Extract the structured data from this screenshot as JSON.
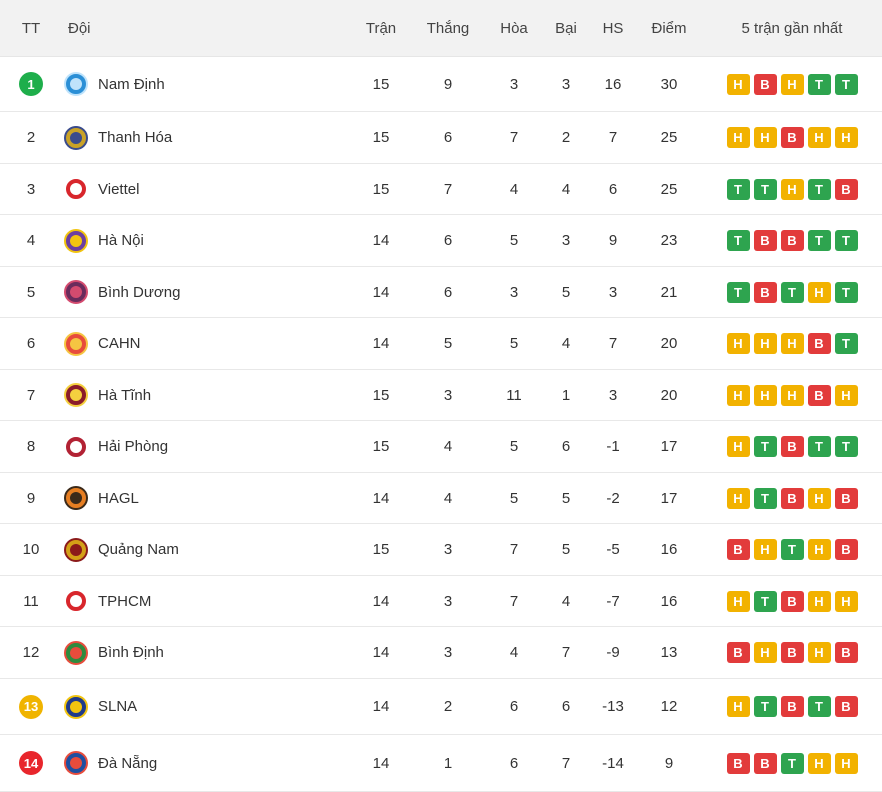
{
  "header": {
    "tt": "TT",
    "team": "Đội",
    "played": "Trận",
    "won": "Thắng",
    "drawn": "Hòa",
    "lost": "Bại",
    "gd": "HS",
    "points": "Điểm",
    "form": "5 trận gần nhất"
  },
  "colors": {
    "win": "#2ea44f",
    "draw": "#f2b200",
    "loss": "#e23b3b",
    "top_badge": "#1eae4b",
    "warn_badge": "#f0b400",
    "danger_badge": "#e8262c"
  },
  "rows": [
    {
      "pos": "1",
      "team": "Nam Định",
      "played": "15",
      "won": "9",
      "drawn": "3",
      "lost": "3",
      "gd": "16",
      "points": "30",
      "form": [
        "H",
        "B",
        "H",
        "T",
        "T"
      ],
      "badge": "#1eae4b",
      "logo": "#2b8fd6",
      "logo2": "#bfe3fb"
    },
    {
      "pos": "2",
      "team": "Thanh Hóa",
      "played": "15",
      "won": "6",
      "drawn": "7",
      "lost": "2",
      "gd": "7",
      "points": "25",
      "form": [
        "H",
        "H",
        "B",
        "H",
        "H"
      ],
      "badge": "",
      "logo": "#c9a227",
      "logo2": "#3a4b8c"
    },
    {
      "pos": "3",
      "team": "Viettel",
      "played": "15",
      "won": "7",
      "drawn": "4",
      "lost": "4",
      "gd": "6",
      "points": "25",
      "form": [
        "T",
        "T",
        "H",
        "T",
        "B"
      ],
      "badge": "",
      "logo": "#d8262c",
      "logo2": "#ffffff"
    },
    {
      "pos": "4",
      "team": "Hà Nội",
      "played": "14",
      "won": "6",
      "drawn": "5",
      "lost": "3",
      "gd": "9",
      "points": "23",
      "form": [
        "T",
        "B",
        "B",
        "T",
        "T"
      ],
      "badge": "",
      "logo": "#6b3fa0",
      "logo2": "#f1c40f"
    },
    {
      "pos": "5",
      "team": "Bình Dương",
      "played": "14",
      "won": "6",
      "drawn": "3",
      "lost": "5",
      "gd": "3",
      "points": "21",
      "form": [
        "T",
        "B",
        "T",
        "H",
        "T"
      ],
      "badge": "",
      "logo": "#6a2c5c",
      "logo2": "#d44b6f"
    },
    {
      "pos": "6",
      "team": "CAHN",
      "played": "14",
      "won": "5",
      "drawn": "5",
      "lost": "4",
      "gd": "7",
      "points": "20",
      "form": [
        "H",
        "H",
        "H",
        "B",
        "T"
      ],
      "badge": "",
      "logo": "#e74c3c",
      "logo2": "#f5c542"
    },
    {
      "pos": "7",
      "team": "Hà Tĩnh",
      "played": "15",
      "won": "3",
      "drawn": "11",
      "lost": "1",
      "gd": "3",
      "points": "20",
      "form": [
        "H",
        "H",
        "H",
        "B",
        "H"
      ],
      "badge": "",
      "logo": "#8b1c2a",
      "logo2": "#f4d03f"
    },
    {
      "pos": "8",
      "team": "Hải Phòng",
      "played": "15",
      "won": "4",
      "drawn": "5",
      "lost": "6",
      "gd": "-1",
      "points": "17",
      "form": [
        "H",
        "T",
        "B",
        "T",
        "T"
      ],
      "badge": "",
      "logo": "#b22234",
      "logo2": "#ffffff"
    },
    {
      "pos": "9",
      "team": "HAGL",
      "played": "14",
      "won": "4",
      "drawn": "5",
      "lost": "5",
      "gd": "-2",
      "points": "17",
      "form": [
        "H",
        "T",
        "B",
        "H",
        "B"
      ],
      "badge": "",
      "logo": "#e67e22",
      "logo2": "#3b2a1a"
    },
    {
      "pos": "10",
      "team": "Quảng Nam",
      "played": "15",
      "won": "3",
      "drawn": "7",
      "lost": "5",
      "gd": "-5",
      "points": "16",
      "form": [
        "B",
        "H",
        "T",
        "H",
        "B"
      ],
      "badge": "",
      "logo": "#d4a017",
      "logo2": "#8b1a1a"
    },
    {
      "pos": "11",
      "team": "TPHCM",
      "played": "14",
      "won": "3",
      "drawn": "7",
      "lost": "4",
      "gd": "-7",
      "points": "16",
      "form": [
        "H",
        "T",
        "B",
        "H",
        "H"
      ],
      "badge": "",
      "logo": "#d8262c",
      "logo2": "#ffffff"
    },
    {
      "pos": "12",
      "team": "Bình Định",
      "played": "14",
      "won": "3",
      "drawn": "4",
      "lost": "7",
      "gd": "-9",
      "points": "13",
      "form": [
        "B",
        "H",
        "B",
        "H",
        "B"
      ],
      "badge": "",
      "logo": "#2e8b3e",
      "logo2": "#e74c3c"
    },
    {
      "pos": "13",
      "team": "SLNA",
      "played": "14",
      "won": "2",
      "drawn": "6",
      "lost": "6",
      "gd": "-13",
      "points": "12",
      "form": [
        "H",
        "T",
        "B",
        "T",
        "B"
      ],
      "badge": "#f0b400",
      "logo": "#1f3a8a",
      "logo2": "#f1c40f"
    },
    {
      "pos": "14",
      "team": "Đà Nẵng",
      "played": "14",
      "won": "1",
      "drawn": "6",
      "lost": "7",
      "gd": "-14",
      "points": "9",
      "form": [
        "B",
        "B",
        "T",
        "H",
        "H"
      ],
      "badge": "#e8262c",
      "logo": "#1f4fa0",
      "logo2": "#e74c3c"
    }
  ]
}
